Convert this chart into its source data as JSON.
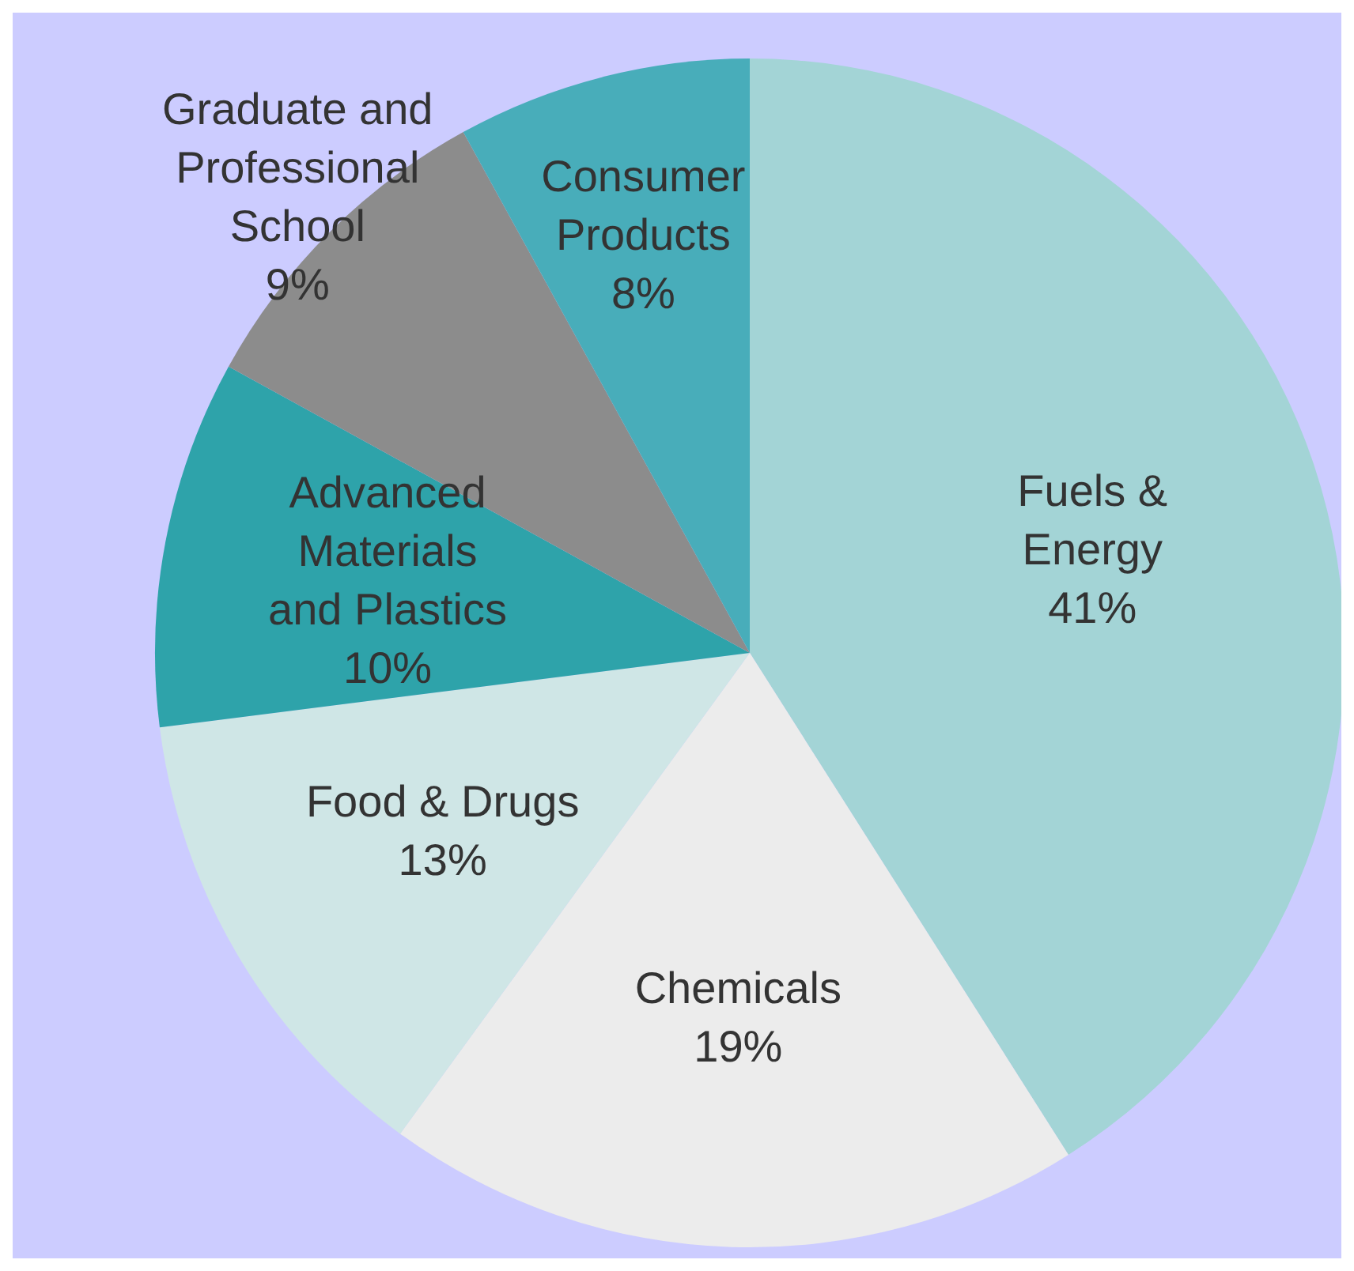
{
  "chart_data": {
    "type": "pie",
    "categories": [
      "Fuels & Energy",
      "Chemicals",
      "Food & Drugs",
      "Advanced Materials and Plastics",
      "Graduate and Professional School",
      "Consumer Products"
    ],
    "values": [
      41,
      19,
      13,
      10,
      9,
      8
    ],
    "colors": [
      "#a3d4d6",
      "#ececec",
      "#cfe6e6",
      "#2ea3aa",
      "#8c8c8c",
      "#48adba"
    ],
    "value_labels": [
      "41%",
      "19%",
      "13%",
      "10%",
      "9%",
      "8%"
    ]
  }
}
